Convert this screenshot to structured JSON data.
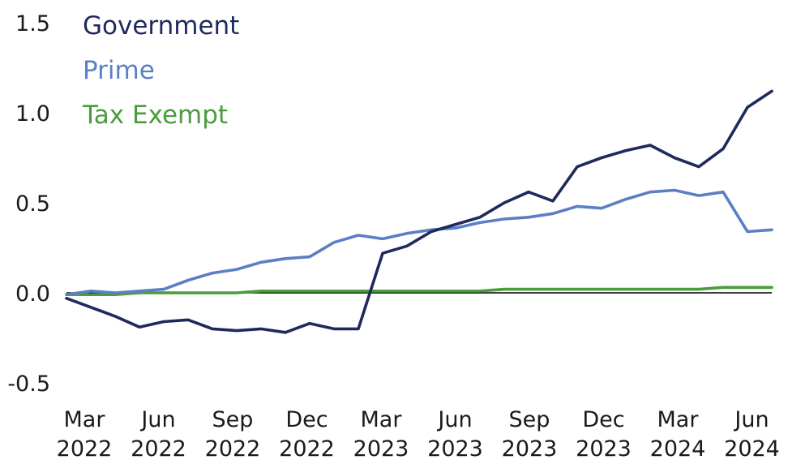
{
  "chart_data": {
    "type": "line",
    "title": "",
    "xlabel": "",
    "ylabel": "",
    "ylim": [
      -0.5,
      1.5
    ],
    "yticks": [
      -0.5,
      0.0,
      0.5,
      1.0,
      1.5
    ],
    "ytick_labels": [
      "-0.5",
      "0.0",
      "0.5",
      "1.0",
      "1.5"
    ],
    "grid": false,
    "legend_placement": "top-left",
    "xtick_labels": [
      {
        "month": "Mar",
        "year": "2022"
      },
      {
        "month": "Jun",
        "year": "2022"
      },
      {
        "month": "Sep",
        "year": "2022"
      },
      {
        "month": "Dec",
        "year": "2022"
      },
      {
        "month": "Mar",
        "year": "2023"
      },
      {
        "month": "Jun",
        "year": "2023"
      },
      {
        "month": "Sep",
        "year": "2023"
      },
      {
        "month": "Dec",
        "year": "2023"
      },
      {
        "month": "Mar",
        "year": "2024"
      },
      {
        "month": "Jun",
        "year": "2024"
      }
    ],
    "x": [
      "2022-02",
      "2022-03",
      "2022-04",
      "2022-05",
      "2022-06",
      "2022-07",
      "2022-08",
      "2022-09",
      "2022-10",
      "2022-11",
      "2022-12",
      "2023-01",
      "2023-02",
      "2023-03",
      "2023-04",
      "2023-05",
      "2023-06",
      "2023-07",
      "2023-08",
      "2023-09",
      "2023-10",
      "2023-11",
      "2023-12",
      "2024-01",
      "2024-02",
      "2024-03",
      "2024-04",
      "2024-05",
      "2024-06",
      "2024-07"
    ],
    "series": [
      {
        "name": "Government",
        "color": "#1f2a5c",
        "values": [
          -0.03,
          -0.08,
          -0.13,
          -0.19,
          -0.16,
          -0.15,
          -0.2,
          -0.21,
          -0.2,
          -0.22,
          -0.17,
          -0.2,
          -0.2,
          0.22,
          0.26,
          0.34,
          0.38,
          0.42,
          0.5,
          0.56,
          0.51,
          0.7,
          0.75,
          0.79,
          0.82,
          0.75,
          0.7,
          0.8,
          1.03,
          1.12
        ]
      },
      {
        "name": "Prime",
        "color": "#5b7fc4",
        "values": [
          -0.01,
          0.01,
          0.0,
          0.01,
          0.02,
          0.07,
          0.11,
          0.13,
          0.17,
          0.19,
          0.2,
          0.28,
          0.32,
          0.3,
          0.33,
          0.35,
          0.36,
          0.39,
          0.41,
          0.42,
          0.44,
          0.48,
          0.47,
          0.52,
          0.56,
          0.57,
          0.54,
          0.56,
          0.34,
          0.35
        ]
      },
      {
        "name": "Tax Exempt",
        "color": "#4a9c3c",
        "values": [
          -0.01,
          -0.01,
          -0.01,
          0.0,
          0.0,
          0.0,
          0.0,
          0.0,
          0.01,
          0.01,
          0.01,
          0.01,
          0.01,
          0.01,
          0.01,
          0.01,
          0.01,
          0.01,
          0.02,
          0.02,
          0.02,
          0.02,
          0.02,
          0.02,
          0.02,
          0.02,
          0.02,
          0.03,
          0.03,
          0.03
        ]
      }
    ]
  }
}
